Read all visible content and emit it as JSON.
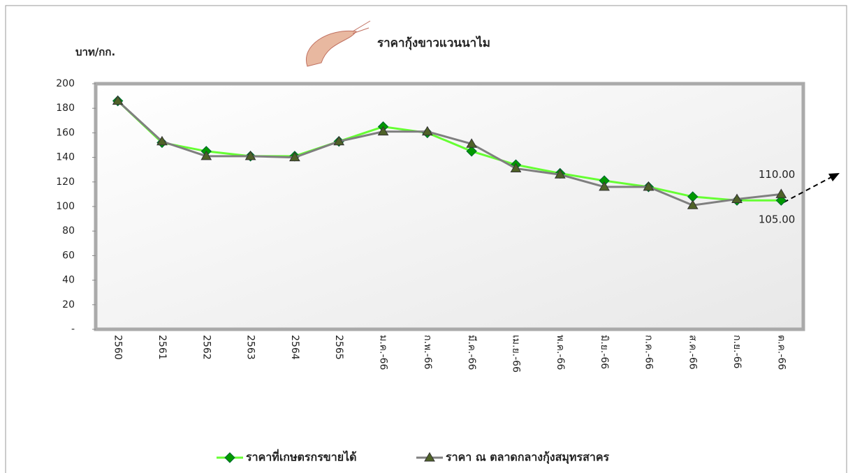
{
  "chart_data": {
    "type": "line",
    "title": "ราคากุ้งขาวแวนนาไม",
    "y_label": "บาท/กก.",
    "categories": [
      "2560",
      "2561",
      "2562",
      "2563",
      "2564",
      "2565",
      "ม.ค.-66",
      "ก.พ.-66",
      "มี.ค.-66",
      "เม.ย.-66",
      "พ.ค.-66",
      "มิ.ย.-66",
      "ก.ค.-66",
      "ส.ค.-66",
      "ก.ย.-66",
      "ต.ค.-66"
    ],
    "series": [
      {
        "name": "ราคาที่เกษตรกรขายได้",
        "color": "#66ff33",
        "marker_color": "#009900",
        "marker": "diamond",
        "values": [
          186,
          152,
          145,
          141,
          141,
          153,
          165,
          160,
          145,
          134,
          127,
          121,
          116,
          108,
          105,
          105
        ],
        "value_labels": [
          null,
          null,
          null,
          null,
          null,
          null,
          null,
          null,
          null,
          null,
          null,
          null,
          null,
          null,
          null,
          "105.00"
        ]
      },
      {
        "name": "ราคา ณ ตลาดกลางกุ้งสมุทรสาคร",
        "color": "#7f7f7f",
        "marker_color": "#4f6228",
        "marker": "triangle",
        "values": [
          186,
          153,
          141,
          141,
          140,
          153,
          161,
          161,
          151,
          131,
          126,
          116,
          116,
          101,
          106,
          110
        ],
        "value_labels": [
          null,
          null,
          null,
          null,
          null,
          null,
          null,
          null,
          null,
          null,
          null,
          null,
          null,
          null,
          null,
          "110.00"
        ]
      }
    ],
    "ylim": [
      0,
      200
    ],
    "yticks": [
      {
        "value": 0,
        "label": "-"
      },
      20,
      40,
      60,
      80,
      100,
      120,
      140,
      160,
      180,
      200
    ],
    "grid": false,
    "legend": "bottom"
  }
}
